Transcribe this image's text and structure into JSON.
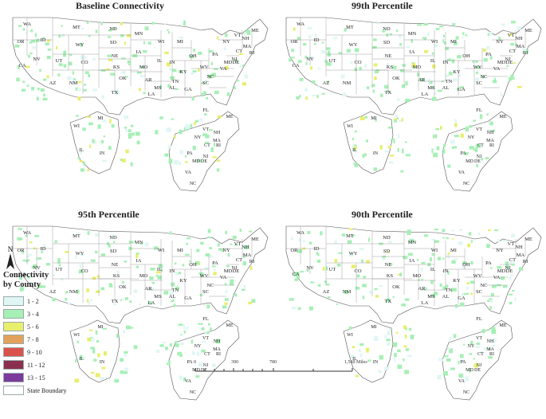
{
  "panels": [
    {
      "id": "baseline",
      "title": "Baseline Connectivity"
    },
    {
      "id": "p99",
      "title": "99th Percentile"
    },
    {
      "id": "p95",
      "title": "95th Percentile"
    },
    {
      "id": "p90",
      "title": "90th Percentile"
    }
  ],
  "main_state_labels": [
    "WA",
    "OR",
    "CA",
    "NV",
    "ID",
    "MT",
    "WY",
    "UT",
    "AZ",
    "NM",
    "CO",
    "ND",
    "SD",
    "NE",
    "KS",
    "OK",
    "TX",
    "MN",
    "IA",
    "MO",
    "AR",
    "LA",
    "WI",
    "IL",
    "MI",
    "IN",
    "OH",
    "KY",
    "TN",
    "MS",
    "AL",
    "GA",
    "FL",
    "SC",
    "NC",
    "VA",
    "WV",
    "PA",
    "NY",
    "ME",
    "VT",
    "NH",
    "MA",
    "CT",
    "RI",
    "NJ",
    "DE",
    "MD"
  ],
  "inset_midwest_labels": [
    "WI",
    "MI",
    "IL",
    "IN"
  ],
  "inset_east_labels": [
    "ME",
    "VT",
    "NH",
    "NY",
    "MA",
    "CT",
    "RI",
    "PA",
    "NJ",
    "MD",
    "DE",
    "VA",
    "NC"
  ],
  "legend": {
    "title_line1": "Connectivity",
    "title_line2": "by County",
    "items": [
      {
        "label": "1 - 2",
        "color": "#dff6f4"
      },
      {
        "label": "3 - 4",
        "color": "#a6efb5"
      },
      {
        "label": "5 - 6",
        "color": "#e8ee6d"
      },
      {
        "label": "7 - 8",
        "color": "#e2a25c"
      },
      {
        "label": "9 - 10",
        "color": "#d9534a"
      },
      {
        "label": "11 - 12",
        "color": "#8a2f4e"
      },
      {
        "label": "13 - 15",
        "color": "#7b3a9c"
      },
      {
        "label": "State Boundary",
        "color": "#ffffff"
      }
    ]
  },
  "north_label": "N",
  "scale": {
    "labels": [
      "0",
      "390",
      "780",
      "1,560 Miles"
    ]
  }
}
